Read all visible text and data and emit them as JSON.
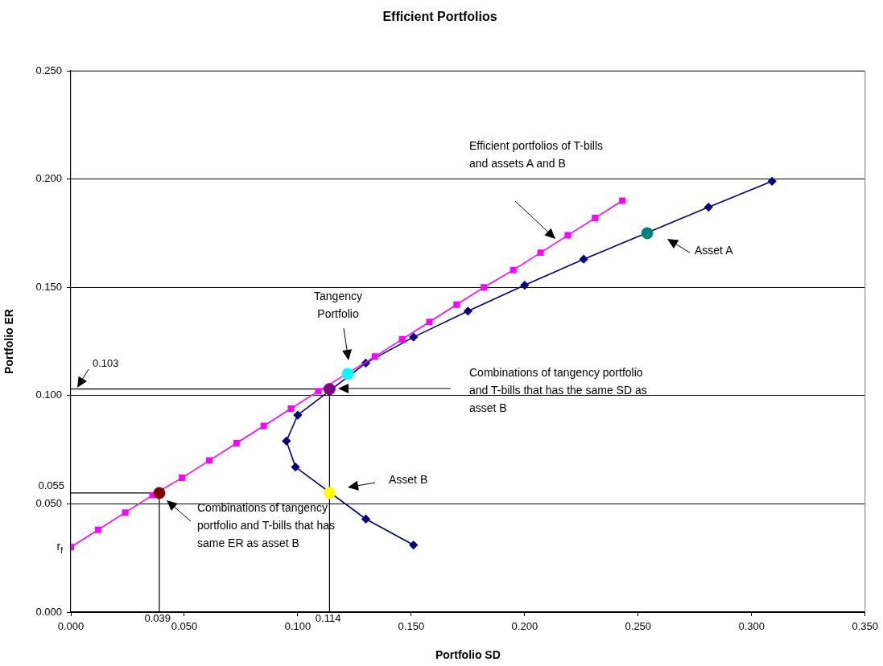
{
  "chart_data": {
    "type": "line",
    "title": "Efficient Portfolios",
    "xlabel": "Portfolio SD",
    "ylabel": "Portfolio ER",
    "xlim": [
      0,
      0.35
    ],
    "xticks": [
      {
        "value": 0,
        "label": "0.000"
      },
      {
        "value": 0.05,
        "label": "0.050"
      },
      {
        "value": 0.1,
        "label": "0.100"
      },
      {
        "value": 0.15,
        "label": "0.150"
      },
      {
        "value": 0.2,
        "label": "0.200"
      },
      {
        "value": 0.25,
        "label": "0.250"
      },
      {
        "value": 0.3,
        "label": "0.300"
      },
      {
        "value": 0.35,
        "label": "0.350"
      }
    ],
    "ylim": [
      0,
      0.25
    ],
    "yticks": [
      {
        "value": 0,
        "label": "0.000"
      },
      {
        "value": 0.05,
        "label": "0.050"
      },
      {
        "value": 0.1,
        "label": "0.100"
      },
      {
        "value": 0.15,
        "label": "0.150"
      },
      {
        "value": 0.2,
        "label": "0.200"
      },
      {
        "value": 0.25,
        "label": "0.250"
      }
    ],
    "grid": "y",
    "series": [
      {
        "marker": "square",
        "color": "#ff00ff",
        "x": [
          0,
          0.012,
          0.024,
          0.036,
          0.049,
          0.061,
          0.073,
          0.085,
          0.097,
          0.109,
          0.122,
          0.134,
          0.146,
          0.158,
          0.17,
          0.182,
          0.195,
          0.207,
          0.219,
          0.231,
          0.243
        ],
        "values": [
          0.03,
          0.038,
          0.046,
          0.054,
          0.062,
          0.07,
          0.078,
          0.086,
          0.094,
          0.102,
          null,
          0.118,
          0.126,
          0.134,
          0.142,
          0.15,
          0.158,
          0.166,
          0.174,
          0.182,
          0.19
        ]
      },
      {
        "marker": "diamond",
        "color": "#000080",
        "x": [
          0.151,
          0.13,
          0.114,
          0.099,
          0.095,
          0.1,
          0.113,
          0.13,
          0.151,
          0.175,
          0.2,
          0.226,
          0.254,
          0.281,
          0.309
        ],
        "values": [
          0.031,
          0.043,
          null,
          0.067,
          0.079,
          0.091,
          null,
          0.115,
          0.127,
          0.139,
          0.151,
          0.163,
          null,
          0.187,
          0.199
        ]
      },
      {
        "type": "scatter",
        "marker": "circle",
        "colors": [
          "#008080",
          "#ffff00",
          "#00ffff",
          "#800080",
          "#800000"
        ],
        "x": [
          0.254,
          0.114,
          0.122,
          0.114,
          0.039
        ],
        "values": [
          0.175,
          0.055,
          0.11,
          0.103,
          0.055
        ]
      }
    ],
    "ref_lines": [
      {
        "axis": "x",
        "value": 0.039,
        "label": "0.039",
        "color": "#000000"
      },
      {
        "axis": "x",
        "value": 0.114,
        "label": "0.114",
        "color": "#000000"
      },
      {
        "axis": "y",
        "value": 0.055,
        "label": "0.055",
        "color": "#000000"
      },
      {
        "axis": "y",
        "value": 0.103,
        "label": "0.103",
        "color": "#000000"
      }
    ],
    "annotations": [
      "Efficient portfolios of T-bills and assets A and B",
      "Asset A",
      "Asset B",
      "Tangency Portfolio",
      "Combinations of tangency portfolio and T-bills that has the same SD as asset B",
      "Combinations of tangency portfolio and T-bills that has same ER as asset B",
      {
        "text": "r$_{f}$",
        "x": 0,
        "y": 0.03
      }
    ]
  }
}
